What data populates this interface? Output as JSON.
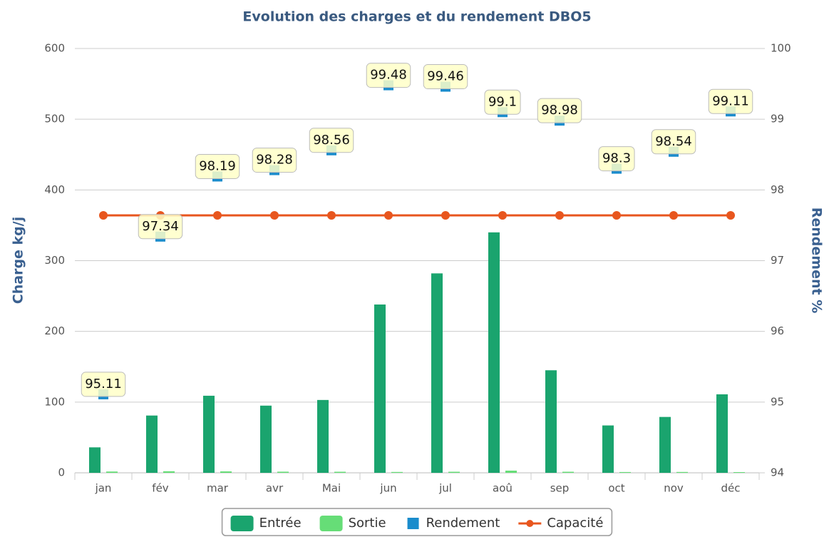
{
  "chart_data": {
    "type": "bar",
    "title": "Evolution des charges et du rendement DBO5",
    "y_label": "Charge kg/j",
    "y2_label": "Rendement %",
    "categories": [
      "jan",
      "fév",
      "mar",
      "avr",
      "Mai",
      "jun",
      "jul",
      "aoû",
      "sep",
      "oct",
      "nov",
      "déc"
    ],
    "series": [
      {
        "name": "Entrée",
        "type": "bar",
        "color": "#1aa46e",
        "values": [
          36,
          81,
          109,
          95,
          103,
          238,
          282,
          340,
          145,
          67,
          79,
          111
        ]
      },
      {
        "name": "Sortie",
        "type": "bar",
        "color": "#66dd77",
        "values": [
          1.8,
          2.2,
          2.0,
          1.6,
          1.5,
          1.2,
          1.5,
          3.1,
          1.5,
          1.1,
          1.2,
          1.0
        ]
      },
      {
        "name": "Rendement",
        "type": "scatter",
        "axis": "y2",
        "color": "#1a8ccc",
        "values": [
          95.11,
          97.34,
          98.19,
          98.28,
          98.56,
          99.48,
          99.46,
          99.1,
          98.98,
          98.3,
          98.54,
          99.11
        ]
      },
      {
        "name": "Capacité",
        "type": "line",
        "color": "#e8561e",
        "values": [
          364,
          364,
          364,
          364,
          364,
          364,
          364,
          364,
          364,
          364,
          364,
          364
        ]
      }
    ],
    "ylim": [
      0,
      600
    ],
    "yticks": [
      0,
      100,
      200,
      300,
      400,
      500,
      600
    ],
    "y2lim": [
      94,
      100
    ],
    "y2ticks": [
      94,
      95,
      96,
      97,
      98,
      99,
      100
    ],
    "grid": true,
    "legend": "bottom"
  }
}
